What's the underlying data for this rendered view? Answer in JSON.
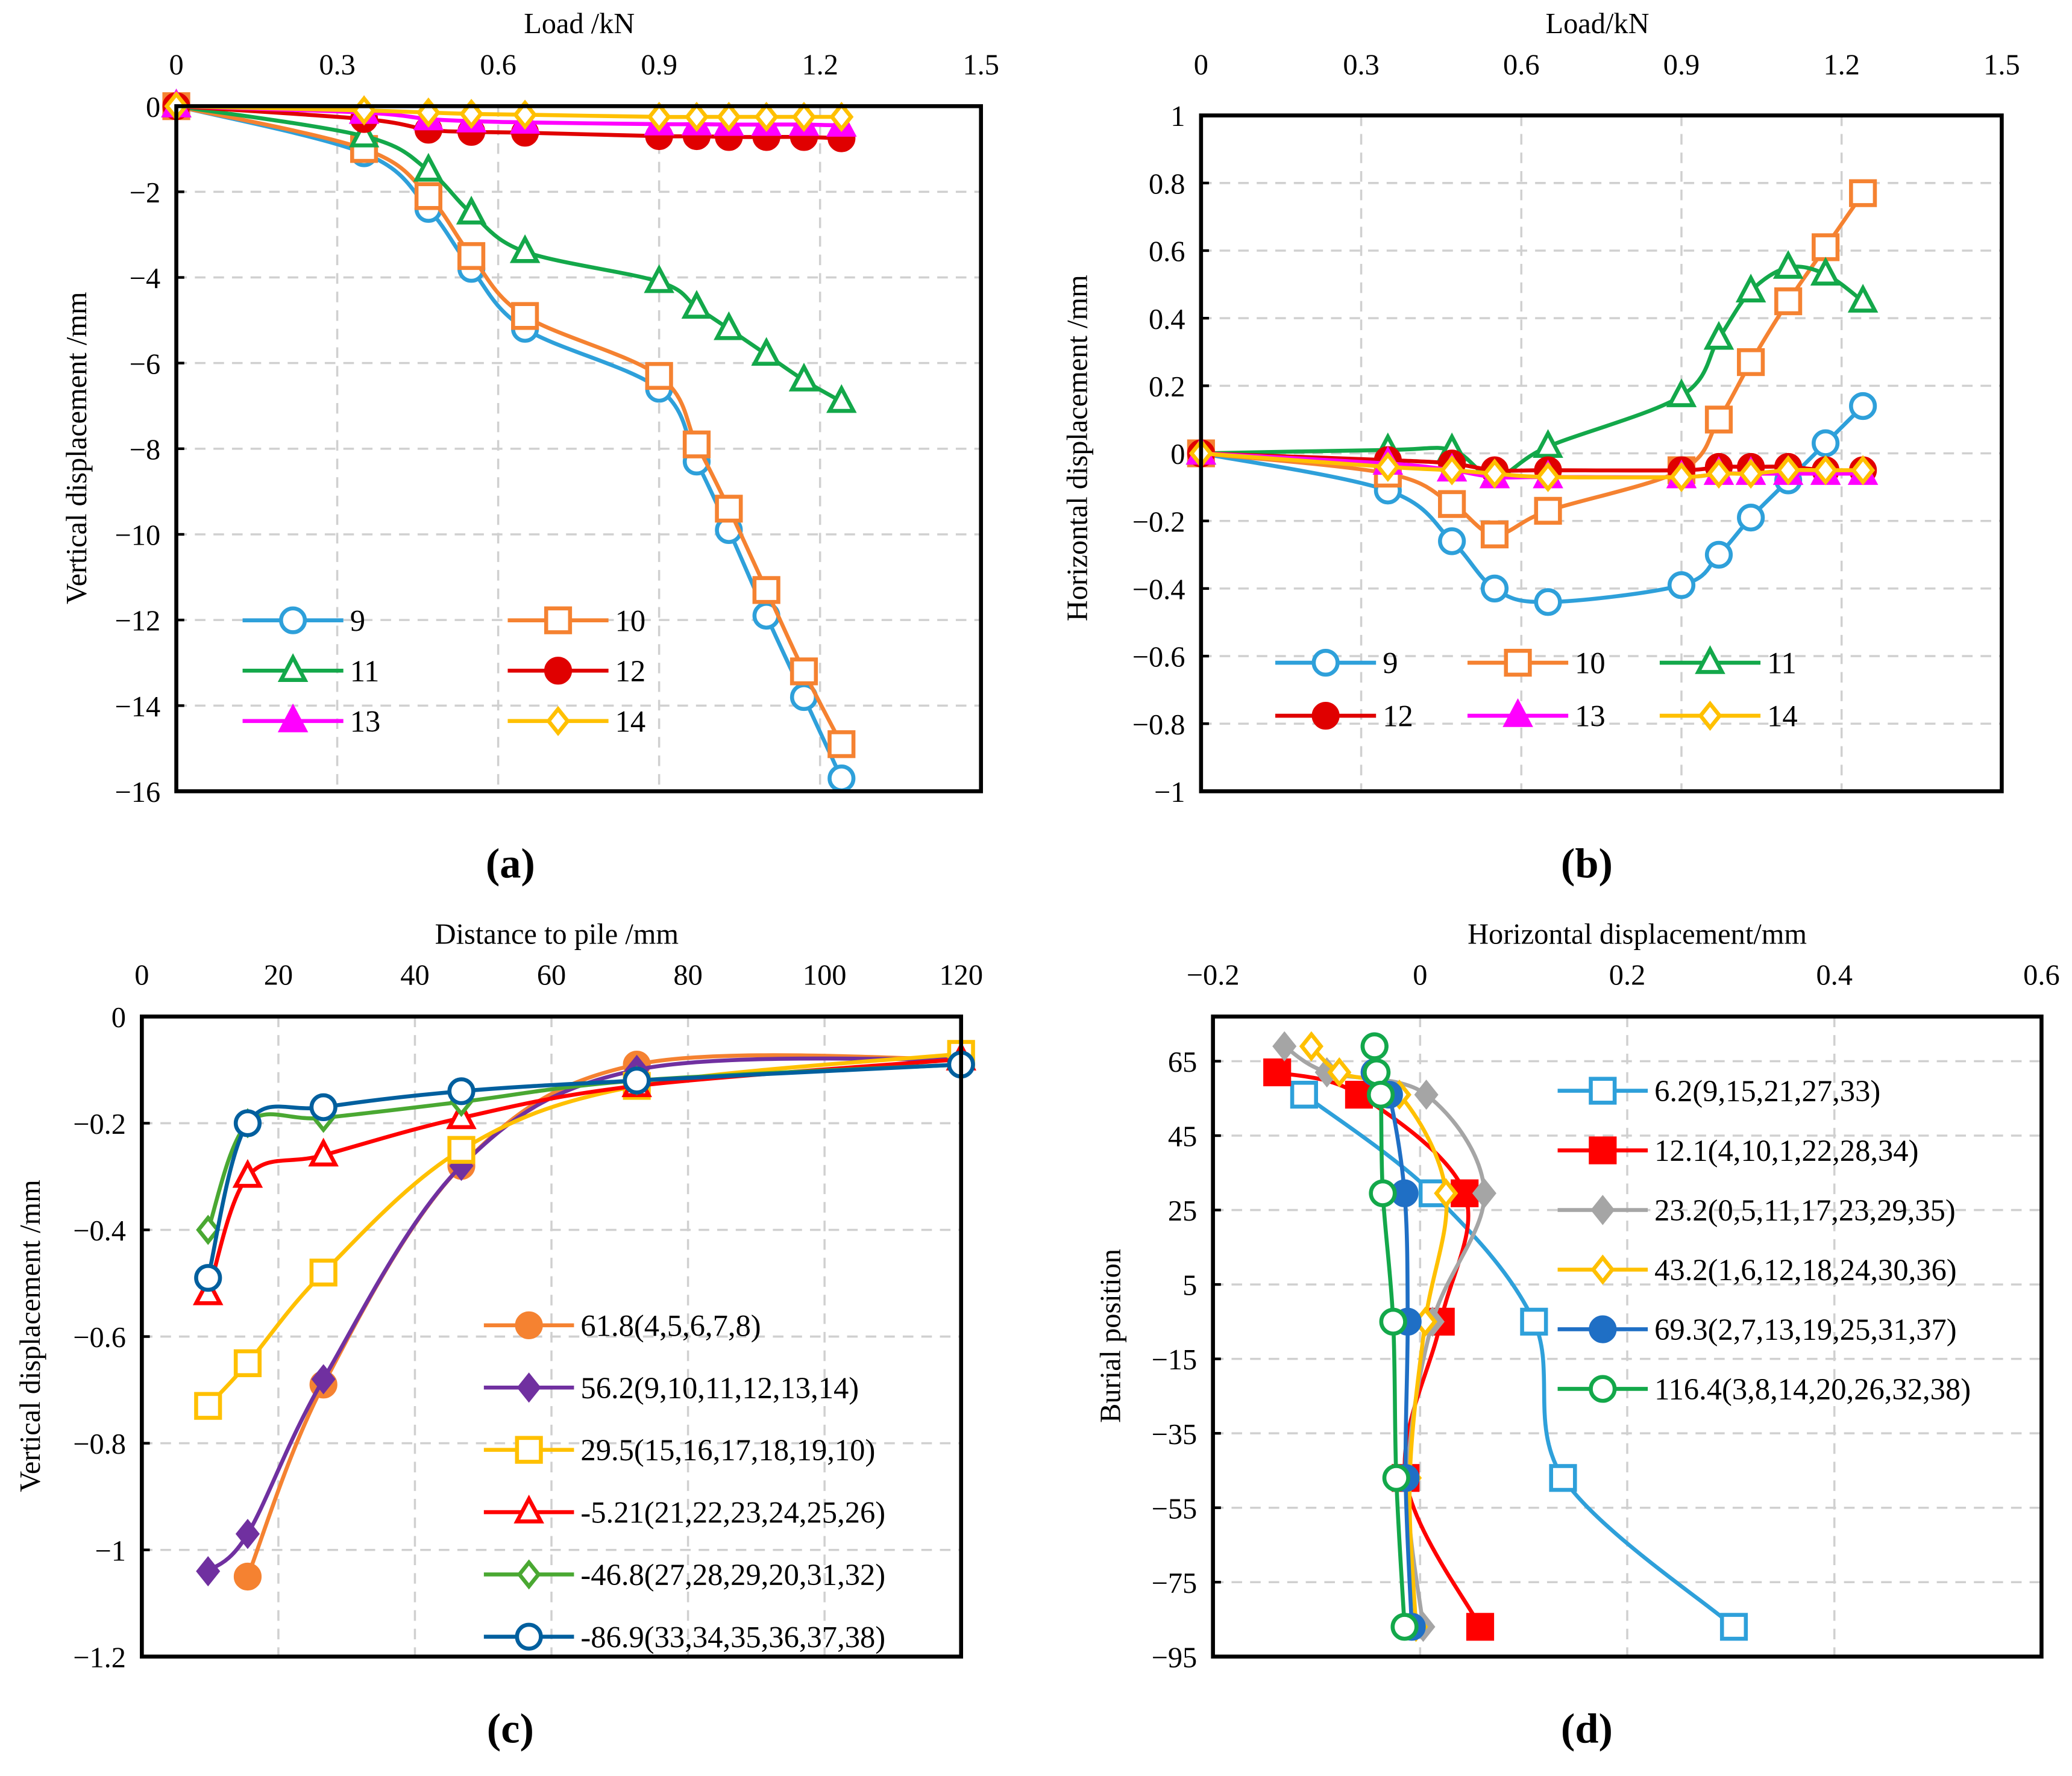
{
  "chart_data": [
    {
      "type": "line",
      "panel_label": "(a)",
      "title": "",
      "xlabel": "Load /kN",
      "ylabel": "Vertical displacement /mm",
      "xlim": [
        0,
        1.5
      ],
      "ylim": [
        -16,
        0
      ],
      "xticks": [
        0,
        0.3,
        0.6,
        0.9,
        1.2,
        1.5
      ],
      "yticks": [
        0,
        -2,
        -4,
        -6,
        -8,
        -10,
        -12,
        -14,
        -16
      ],
      "grid": true,
      "legend": "bottom-left",
      "series": [
        {
          "name": "9",
          "color": "#2ea0da",
          "marker": "circle-open",
          "x": [
            0,
            0.35,
            0.47,
            0.55,
            0.65,
            0.9,
            0.97,
            1.03,
            1.1,
            1.17,
            1.24
          ],
          "y": [
            0,
            -1.1,
            -2.4,
            -3.8,
            -5.2,
            -6.6,
            -8.3,
            -9.9,
            -11.9,
            -13.8,
            -15.7
          ]
        },
        {
          "name": "10",
          "color": "#f58231",
          "marker": "square-open",
          "x": [
            0,
            0.35,
            0.47,
            0.55,
            0.65,
            0.9,
            0.97,
            1.03,
            1.1,
            1.17,
            1.24
          ],
          "y": [
            0,
            -1.0,
            -2.1,
            -3.5,
            -4.9,
            -6.3,
            -7.9,
            -9.4,
            -11.3,
            -13.2,
            -14.9
          ]
        },
        {
          "name": "11",
          "color": "#13a84a",
          "marker": "triangle-open",
          "x": [
            0,
            0.35,
            0.47,
            0.55,
            0.65,
            0.9,
            0.97,
            1.03,
            1.1,
            1.17,
            1.24
          ],
          "y": [
            0,
            -0.7,
            -1.5,
            -2.5,
            -3.4,
            -4.1,
            -4.7,
            -5.2,
            -5.8,
            -6.4,
            -6.9
          ]
        },
        {
          "name": "12",
          "color": "#e00000",
          "marker": "circle-filled",
          "x": [
            0,
            0.35,
            0.47,
            0.55,
            0.65,
            0.9,
            0.97,
            1.03,
            1.1,
            1.17,
            1.24
          ],
          "y": [
            0,
            -0.3,
            -0.55,
            -0.6,
            -0.62,
            -0.7,
            -0.7,
            -0.72,
            -0.72,
            -0.72,
            -0.75
          ]
        },
        {
          "name": "13",
          "color": "#ff00ff",
          "marker": "triangle-filled",
          "x": [
            0,
            0.35,
            0.47,
            0.55,
            0.65,
            0.9,
            0.97,
            1.03,
            1.1,
            1.17,
            1.24
          ],
          "y": [
            0,
            -0.15,
            -0.3,
            -0.35,
            -0.38,
            -0.42,
            -0.42,
            -0.43,
            -0.43,
            -0.43,
            -0.45
          ]
        },
        {
          "name": "14",
          "color": "#ffc000",
          "marker": "diamond-open",
          "x": [
            0,
            0.35,
            0.47,
            0.55,
            0.65,
            0.9,
            0.97,
            1.03,
            1.1,
            1.17,
            1.24
          ],
          "y": [
            0,
            -0.1,
            -0.15,
            -0.18,
            -0.2,
            -0.25,
            -0.25,
            -0.25,
            -0.25,
            -0.25,
            -0.25
          ]
        }
      ]
    },
    {
      "type": "line",
      "panel_label": "(b)",
      "title": "",
      "xlabel": "Load/kN",
      "ylabel": "Horizontal displacement /mm",
      "xlim": [
        0,
        1.5
      ],
      "ylim": [
        -1,
        1
      ],
      "xticks": [
        0,
        0.3,
        0.6,
        0.9,
        1.2,
        1.5
      ],
      "yticks": [
        1,
        0.8,
        0.6,
        0.4,
        0.2,
        0,
        -0.2,
        -0.4,
        -0.6,
        -0.8,
        -1
      ],
      "grid": true,
      "legend": "bottom",
      "series": [
        {
          "name": "9",
          "color": "#2ea0da",
          "marker": "circle-open",
          "x": [
            0,
            0.35,
            0.47,
            0.55,
            0.65,
            0.9,
            0.97,
            1.03,
            1.1,
            1.17,
            1.24
          ],
          "y": [
            0,
            -0.11,
            -0.26,
            -0.4,
            -0.44,
            -0.39,
            -0.3,
            -0.19,
            -0.08,
            0.03,
            0.14
          ]
        },
        {
          "name": "10",
          "color": "#f58231",
          "marker": "square-open",
          "x": [
            0,
            0.35,
            0.47,
            0.55,
            0.65,
            0.9,
            0.97,
            1.03,
            1.1,
            1.17,
            1.24
          ],
          "y": [
            0,
            -0.06,
            -0.15,
            -0.24,
            -0.17,
            -0.05,
            0.1,
            0.27,
            0.45,
            0.61,
            0.77
          ]
        },
        {
          "name": "11",
          "color": "#13a84a",
          "marker": "triangle-open",
          "x": [
            0,
            0.35,
            0.47,
            0.55,
            0.65,
            0.9,
            0.97,
            1.03,
            1.1,
            1.17,
            1.24
          ],
          "y": [
            0,
            0.01,
            0.01,
            -0.07,
            0.02,
            0.17,
            0.34,
            0.48,
            0.55,
            0.53,
            0.45
          ]
        },
        {
          "name": "12",
          "color": "#e00000",
          "marker": "circle-filled",
          "x": [
            0,
            0.35,
            0.47,
            0.55,
            0.65,
            0.9,
            0.97,
            1.03,
            1.1,
            1.17,
            1.24
          ],
          "y": [
            0,
            -0.02,
            -0.03,
            -0.05,
            -0.05,
            -0.05,
            -0.04,
            -0.04,
            -0.04,
            -0.05,
            -0.05
          ]
        },
        {
          "name": "13",
          "color": "#ff00ff",
          "marker": "triangle-filled",
          "x": [
            0,
            0.35,
            0.47,
            0.55,
            0.65,
            0.9,
            0.97,
            1.03,
            1.1,
            1.17,
            1.24
          ],
          "y": [
            0,
            -0.03,
            -0.05,
            -0.07,
            -0.07,
            -0.07,
            -0.06,
            -0.06,
            -0.06,
            -0.06,
            -0.06
          ]
        },
        {
          "name": "14",
          "color": "#ffc000",
          "marker": "diamond-open",
          "x": [
            0,
            0.35,
            0.47,
            0.55,
            0.65,
            0.9,
            0.97,
            1.03,
            1.1,
            1.17,
            1.24
          ],
          "y": [
            0,
            -0.04,
            -0.05,
            -0.06,
            -0.07,
            -0.07,
            -0.06,
            -0.06,
            -0.05,
            -0.05,
            -0.05
          ]
        }
      ]
    },
    {
      "type": "line",
      "panel_label": "(c)",
      "title": "",
      "xlabel": "Distance to pile /mm",
      "ylabel": "Vertical displacement /mm",
      "xlim": [
        0,
        120
      ],
      "ylim": [
        -1.2,
        0
      ],
      "xticks": [
        0,
        20,
        40,
        60,
        80,
        100,
        120
      ],
      "yticks": [
        0,
        -0.2,
        -0.4,
        -0.6,
        -0.8,
        -1,
        -1.2
      ],
      "grid": true,
      "legend": "bottom-right",
      "series": [
        {
          "name": "61.8(4,5,6,7,8)",
          "color": "#f58231",
          "marker": "circle-filled",
          "x": [
            15.5,
            26.6,
            46.8,
            72.5,
            120
          ],
          "y": [
            -1.05,
            -0.69,
            -0.28,
            -0.09,
            -0.08
          ]
        },
        {
          "name": "56.2(9,10,11,12,13,14)",
          "color": "#7030a0",
          "marker": "diamond-filled",
          "x": [
            9.7,
            15.5,
            26.6,
            46.8,
            72.5,
            120
          ],
          "y": [
            -1.04,
            -0.97,
            -0.68,
            -0.28,
            -0.1,
            -0.08
          ]
        },
        {
          "name": "29.5(15,16,17,18,19,10)",
          "color": "#ffc000",
          "marker": "square-open",
          "x": [
            9.7,
            15.5,
            26.6,
            46.8,
            72.5,
            120
          ],
          "y": [
            -0.73,
            -0.65,
            -0.48,
            -0.25,
            -0.13,
            -0.07
          ]
        },
        {
          "name": "-5.21(21,22,23,24,25,26)",
          "color": "#ff0000",
          "marker": "triangle-open",
          "x": [
            9.7,
            15.5,
            26.6,
            46.8,
            72.5,
            120
          ],
          "y": [
            -0.52,
            -0.3,
            -0.26,
            -0.19,
            -0.13,
            -0.08
          ]
        },
        {
          "name": "-46.8(27,28,29,20,31,32)",
          "color": "#4aa832",
          "marker": "diamond-open",
          "x": [
            9.7,
            15.5,
            26.6,
            46.8,
            72.5,
            120
          ],
          "y": [
            -0.4,
            -0.2,
            -0.19,
            -0.16,
            -0.12,
            -0.09
          ]
        },
        {
          "name": "-86.9(33,34,35,36,37,38)",
          "color": "#005f9e",
          "marker": "circle-open",
          "x": [
            9.7,
            15.5,
            26.6,
            46.8,
            72.5,
            120
          ],
          "y": [
            -0.49,
            -0.2,
            -0.17,
            -0.14,
            -0.12,
            -0.09
          ]
        }
      ]
    },
    {
      "type": "line",
      "panel_label": "(d)",
      "title": "",
      "xlabel": "Horizontal displacement/mm",
      "ylabel": "Burial position",
      "xlim": [
        -0.2,
        0.6
      ],
      "ylim": [
        -95,
        77
      ],
      "xticks": [
        -0.2,
        0,
        0.2,
        0.4,
        0.6
      ],
      "yticks": [
        65,
        45,
        25,
        5,
        -15,
        -35,
        -55,
        -75,
        -95
      ],
      "grid": true,
      "legend": "top-right",
      "series": [
        {
          "name": "6.2(9,15,21,27,33)",
          "color": "#2ea0da",
          "marker": "square-open",
          "x": [
            -0.112,
            0.012,
            0.11,
            0.138,
            0.303
          ],
          "y": [
            56,
            29.5,
            -5,
            -47,
            -87
          ]
        },
        {
          "name": "12.1(4,10,1,22,28,34)",
          "color": "#ff0000",
          "marker": "square-filled",
          "x": [
            -0.138,
            -0.059,
            0.043,
            0.02,
            -0.014,
            0.058
          ],
          "y": [
            62,
            56,
            29.5,
            -5,
            -47,
            -87
          ]
        },
        {
          "name": "23.2(0,5,11,17,23,29,35)",
          "color": "#a5a5a5",
          "marker": "diamond-filled",
          "x": [
            -0.131,
            -0.09,
            0.006,
            0.062,
            0.012,
            -0.012,
            0.003
          ],
          "y": [
            69,
            62,
            56,
            29.5,
            -5,
            -47,
            -87
          ]
        },
        {
          "name": "43.2(1,6,12,18,24,30,36)",
          "color": "#ffc000",
          "marker": "diamond-open",
          "x": [
            -0.105,
            -0.078,
            -0.02,
            0.025,
            0.005,
            -0.01,
            -0.004
          ],
          "y": [
            69,
            62,
            56,
            29.5,
            -5,
            -47,
            -87
          ]
        },
        {
          "name": "69.3(2,7,13,19,25,31,37)",
          "color": "#1f6fc5",
          "marker": "circle-filled",
          "x": [
            -0.044,
            -0.044,
            -0.03,
            -0.015,
            -0.012,
            -0.014,
            -0.008
          ],
          "y": [
            69,
            62,
            56,
            29.5,
            -5,
            -47,
            -87
          ]
        },
        {
          "name": "116.4(3,8,14,20,26,32,38)",
          "color": "#13a84a",
          "marker": "circle-open",
          "x": [
            -0.044,
            -0.042,
            -0.038,
            -0.036,
            -0.026,
            -0.023,
            -0.015
          ],
          "y": [
            69,
            62,
            56,
            29.5,
            -5,
            -47,
            -87
          ]
        }
      ]
    }
  ]
}
